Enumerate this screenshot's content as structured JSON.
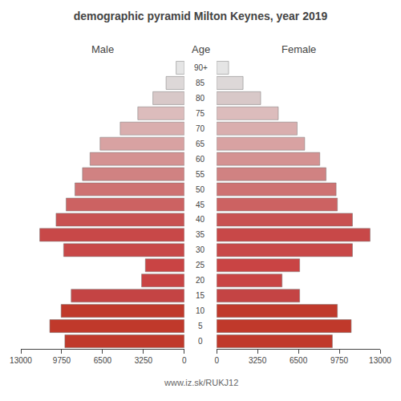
{
  "chart_data": {
    "type": "bar",
    "title": "demographic pyramid Milton Keynes, year 2019",
    "orientation": "horizontal",
    "categories": [
      "0",
      "5",
      "10",
      "15",
      "20",
      "25",
      "30",
      "35",
      "40",
      "45",
      "50",
      "55",
      "60",
      "65",
      "70",
      "75",
      "80",
      "85",
      "90+"
    ],
    "series": [
      {
        "name": "Male",
        "values": [
          9500,
          10700,
          9800,
          9000,
          3400,
          3100,
          9600,
          11500,
          10200,
          9400,
          8700,
          8100,
          7500,
          6700,
          5100,
          3700,
          2500,
          1450,
          650
        ]
      },
      {
        "name": "Female",
        "values": [
          9200,
          10700,
          9600,
          6600,
          5200,
          6600,
          10800,
          12200,
          10800,
          9600,
          9500,
          8700,
          8200,
          7000,
          6400,
          4900,
          3500,
          2100,
          950
        ]
      }
    ],
    "colors": [
      "#c0392b",
      "#c0392b",
      "#c0392b",
      "#c44444",
      "#c94444",
      "#c94444",
      "#c84848",
      "#c84848",
      "#c85252",
      "#cc6262",
      "#ce7272",
      "#d08282",
      "#d49292",
      "#d8a2a2",
      "#d9aeae",
      "#dcbcbc",
      "#d8c8c8",
      "#ddd8d8",
      "#e5e5e5"
    ],
    "xlim": [
      0,
      13000
    ],
    "xticks": [
      0,
      3250,
      6500,
      9750,
      13000
    ],
    "ylabel": "Age",
    "annotations": [
      {
        "text": "www.iz.sk/RUKJ12"
      }
    ],
    "grid": false
  }
}
